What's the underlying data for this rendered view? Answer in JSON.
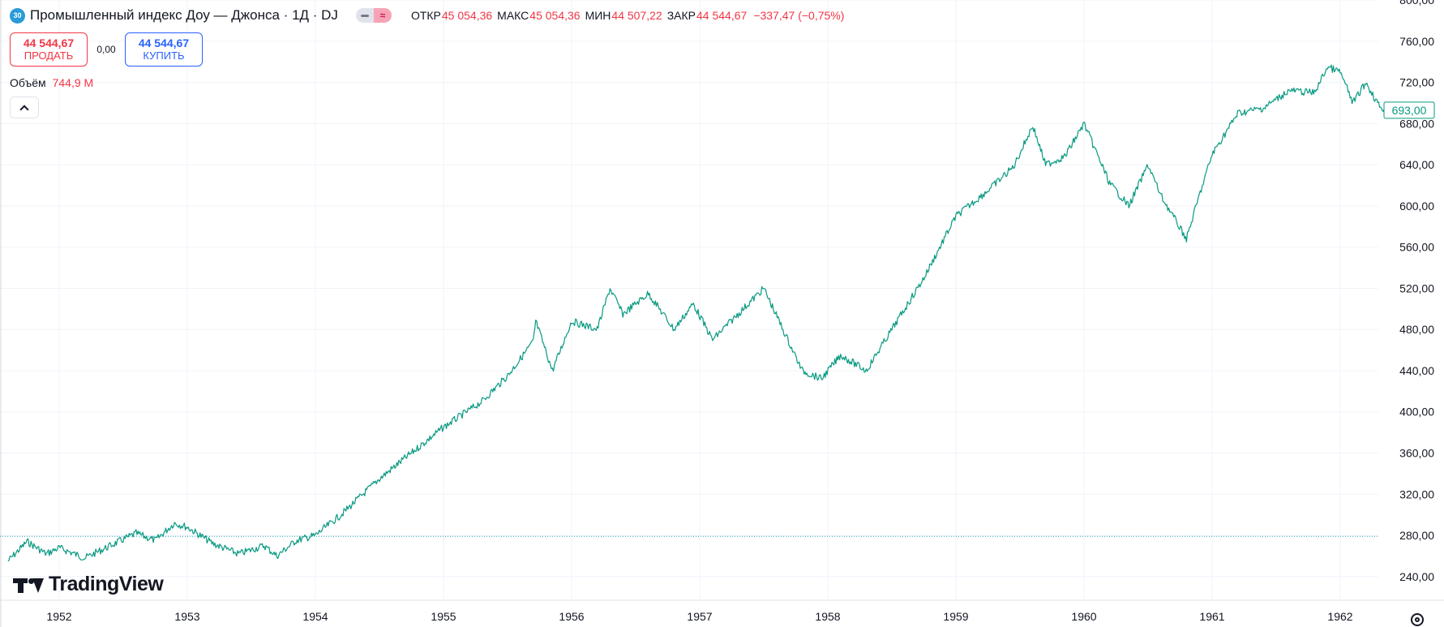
{
  "header": {
    "badge": "30",
    "title": "Промышленный индекс Доу — Джонса · 1Д · DJ",
    "toggle_icon": "≈",
    "ohlc": {
      "open_label": "ОТКР",
      "open_value": "45 054,36",
      "high_label": "МАКС",
      "high_value": "45 054,36",
      "low_label": "МИН",
      "low_value": "44 507,22",
      "close_label": "ЗАКР",
      "close_value": "44 544,67",
      "change": "−337,47 (−0,75%)"
    }
  },
  "trade": {
    "sell_price": "44 544,67",
    "sell_label": "ПРОДАТЬ",
    "spread": "0,00",
    "buy_price": "44 544,67",
    "buy_label": "КУПИТЬ"
  },
  "volume": {
    "label": "Объём",
    "value": "744,9 M"
  },
  "branding": {
    "logo_text": "TradingView"
  },
  "colors": {
    "line": "#089981",
    "sell": "#f23645",
    "buy": "#2962ff",
    "grid": "#f0f3fa"
  },
  "chart_data": {
    "type": "line",
    "title": "",
    "xlabel": "",
    "ylabel": "",
    "ylim": [
      217,
      800
    ],
    "x_ticks": [
      "1952",
      "1953",
      "1954",
      "1955",
      "1956",
      "1957",
      "1958",
      "1959",
      "1960",
      "1961",
      "1962"
    ],
    "y_ticks": [
      "800,00",
      "760,00",
      "720,00",
      "680,00",
      "640,00",
      "600,00",
      "560,00",
      "520,00",
      "480,00",
      "440,00",
      "400,00",
      "360,00",
      "320,00",
      "280,00",
      "240,00"
    ],
    "last_price_label": "693,00",
    "last_price": 693,
    "reference_line": 279,
    "grid": true,
    "series": [
      {
        "x": [
          1951.6,
          1951.75,
          1951.9,
          1952.0,
          1952.2,
          1952.4,
          1952.6,
          1952.75,
          1952.9,
          1953.0,
          1953.2,
          1953.4,
          1953.6,
          1953.7,
          1953.85,
          1954.0,
          1954.2,
          1954.5,
          1954.75,
          1955.0,
          1955.3,
          1955.5,
          1955.7,
          1955.72,
          1955.85,
          1956.0,
          1956.2,
          1956.3,
          1956.4,
          1956.6,
          1956.8,
          1956.95,
          1957.1,
          1957.3,
          1957.5,
          1957.65,
          1957.8,
          1957.95,
          1958.1,
          1958.3,
          1958.5,
          1958.75,
          1959.0,
          1959.25,
          1959.45,
          1959.6,
          1959.7,
          1959.85,
          1960.0,
          1960.2,
          1960.35,
          1960.5,
          1960.6,
          1960.8,
          1960.9,
          1961.0,
          1961.2,
          1961.4,
          1961.6,
          1961.8,
          1961.9,
          1962.0,
          1962.1,
          1962.2,
          1962.3,
          1962.35
        ],
        "y": [
          255,
          274,
          262,
          268,
          258,
          270,
          282,
          275,
          292,
          288,
          272,
          262,
          270,
          260,
          275,
          280,
          300,
          335,
          360,
          385,
          410,
          435,
          468,
          488,
          440,
          488,
          480,
          520,
          495,
          515,
          480,
          505,
          470,
          495,
          520,
          480,
          440,
          432,
          455,
          440,
          480,
          530,
          590,
          615,
          638,
          678,
          640,
          648,
          680,
          622,
          600,
          640,
          610,
          568,
          610,
          650,
          690,
          695,
          712,
          710,
          735,
          730,
          700,
          720,
          698,
          693
        ]
      }
    ]
  }
}
